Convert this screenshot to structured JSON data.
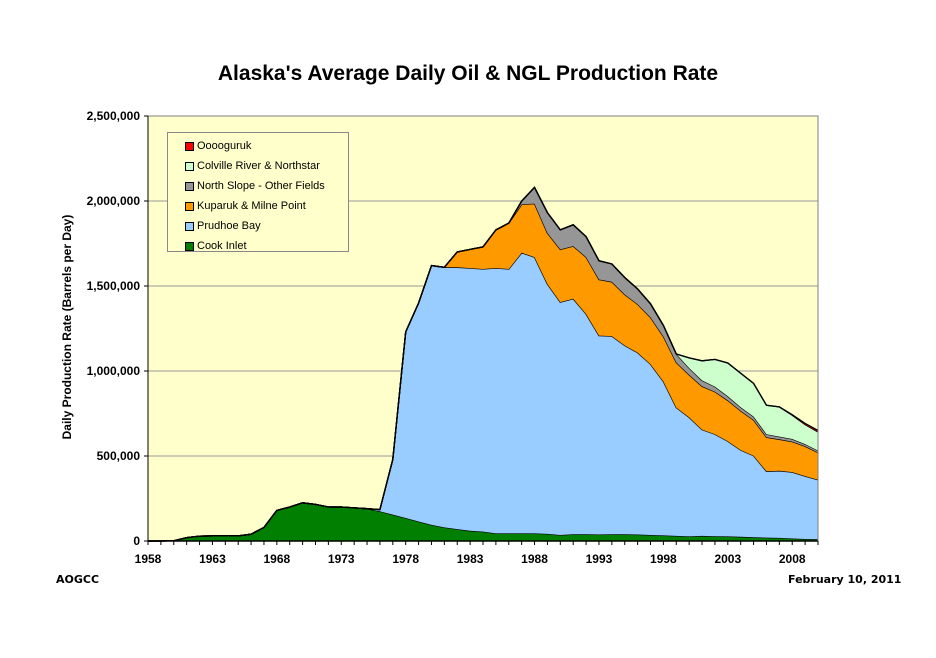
{
  "chart_data": {
    "type": "area",
    "stacked": true,
    "title": "Alaska's Average Daily Oil & NGL Production Rate",
    "xlabel": "",
    "ylabel": "Daily Production Rate (Barrels per Day)",
    "ylim": [
      0,
      2500000
    ],
    "xlim": [
      1958,
      2010
    ],
    "yticks": [
      "0",
      "500,000",
      "1,000,000",
      "1,500,000",
      "2,000,000",
      "2,500,000"
    ],
    "ytick_values": [
      0,
      500000,
      1000000,
      1500000,
      2000000,
      2500000
    ],
    "xticks": [
      "1958",
      "1963",
      "1968",
      "1973",
      "1978",
      "1983",
      "1988",
      "1993",
      "1998",
      "2003",
      "2008"
    ],
    "grid": "horizontal",
    "legend_position": "upper-left inside plot",
    "plot_background": "#ffffcc",
    "x": [
      1958,
      1959,
      1960,
      1961,
      1962,
      1963,
      1964,
      1965,
      1966,
      1967,
      1968,
      1969,
      1970,
      1971,
      1972,
      1973,
      1974,
      1975,
      1976,
      1977,
      1978,
      1979,
      1980,
      1981,
      1982,
      1983,
      1984,
      1985,
      1986,
      1987,
      1988,
      1989,
      1990,
      1991,
      1992,
      1993,
      1994,
      1995,
      1996,
      1997,
      1998,
      1999,
      2000,
      2001,
      2002,
      2003,
      2004,
      2005,
      2006,
      2007,
      2008,
      2009,
      2010
    ],
    "series": [
      {
        "name": "Cook Inlet",
        "color": "#007f00",
        "values": [
          0,
          0,
          2000,
          20000,
          28000,
          30000,
          30000,
          30000,
          40000,
          80000,
          180000,
          200000,
          225000,
          215000,
          200000,
          200000,
          195000,
          190000,
          175000,
          155000,
          135000,
          115000,
          95000,
          80000,
          70000,
          60000,
          55000,
          45000,
          45000,
          45000,
          45000,
          42000,
          35000,
          40000,
          40000,
          38000,
          40000,
          40000,
          38000,
          35000,
          33000,
          30000,
          27000,
          30000,
          28000,
          27000,
          25000,
          22000,
          20000,
          18000,
          15000,
          12000,
          10000
        ]
      },
      {
        "name": "Prudhoe Bay",
        "color": "#99ccff",
        "values": [
          0,
          0,
          0,
          0,
          0,
          0,
          0,
          0,
          0,
          0,
          0,
          0,
          0,
          0,
          0,
          0,
          0,
          0,
          10000,
          325000,
          1095000,
          1285000,
          1525000,
          1530000,
          1540000,
          1545000,
          1545000,
          1560000,
          1555000,
          1650000,
          1625000,
          1470000,
          1370000,
          1385000,
          1295000,
          1170000,
          1165000,
          1110000,
          1070000,
          1005000,
          905000,
          755000,
          700000,
          625000,
          600000,
          560000,
          510000,
          480000,
          390000,
          395000,
          390000,
          370000,
          350000
        ]
      },
      {
        "name": "Kuparuk & Milne Point",
        "color": "#ff9900",
        "values": [
          0,
          0,
          0,
          0,
          0,
          0,
          0,
          0,
          0,
          0,
          0,
          0,
          0,
          0,
          0,
          0,
          0,
          0,
          0,
          0,
          0,
          0,
          0,
          0,
          90000,
          110000,
          130000,
          225000,
          270000,
          285000,
          315000,
          300000,
          310000,
          310000,
          335000,
          330000,
          320000,
          300000,
          285000,
          275000,
          265000,
          265000,
          250000,
          255000,
          250000,
          240000,
          230000,
          210000,
          200000,
          185000,
          180000,
          175000,
          160000
        ]
      },
      {
        "name": "North Slope - Other Fields",
        "color": "#969696",
        "values": [
          0,
          0,
          0,
          0,
          0,
          0,
          0,
          0,
          0,
          0,
          0,
          0,
          0,
          0,
          0,
          0,
          0,
          0,
          0,
          0,
          0,
          0,
          0,
          0,
          0,
          0,
          0,
          0,
          0,
          20000,
          95000,
          120000,
          115000,
          125000,
          120000,
          110000,
          105000,
          100000,
          90000,
          80000,
          65000,
          50000,
          40000,
          35000,
          30000,
          25000,
          22000,
          20000,
          18000,
          16000,
          15000,
          13000,
          12000
        ]
      },
      {
        "name": "Colville River & Northstar",
        "color": "#ccffcc",
        "values": [
          0,
          0,
          0,
          0,
          0,
          0,
          0,
          0,
          0,
          0,
          0,
          0,
          0,
          0,
          0,
          0,
          0,
          0,
          0,
          0,
          0,
          0,
          0,
          0,
          0,
          0,
          0,
          0,
          0,
          0,
          0,
          0,
          0,
          0,
          0,
          0,
          0,
          0,
          0,
          0,
          0,
          0,
          60000,
          115000,
          160000,
          195000,
          200000,
          195000,
          170000,
          175000,
          140000,
          115000,
          110000
        ]
      },
      {
        "name": "Oooguruk",
        "color": "#ff0000",
        "values": [
          0,
          0,
          0,
          0,
          0,
          0,
          0,
          0,
          0,
          0,
          0,
          0,
          0,
          0,
          0,
          0,
          0,
          0,
          0,
          0,
          0,
          0,
          0,
          0,
          0,
          0,
          0,
          0,
          0,
          0,
          0,
          0,
          0,
          0,
          0,
          0,
          0,
          0,
          0,
          0,
          0,
          0,
          0,
          0,
          0,
          0,
          0,
          0,
          0,
          0,
          3000,
          7000,
          8000
        ]
      }
    ]
  },
  "legend": {
    "items": [
      {
        "label": "Ooooguruk",
        "color": "#ff0000"
      },
      {
        "label": "Colville River & Northstar",
        "color": "#ccffcc"
      },
      {
        "label": "North Slope - Other Fields",
        "color": "#969696"
      },
      {
        "label": "Kuparuk & Milne Point",
        "color": "#ff9900"
      },
      {
        "label": "Prudhoe Bay",
        "color": "#99ccff"
      },
      {
        "label": "Cook Inlet",
        "color": "#007f00"
      }
    ]
  },
  "footer": {
    "source": "AOGCC",
    "date": "February 10, 2011"
  }
}
